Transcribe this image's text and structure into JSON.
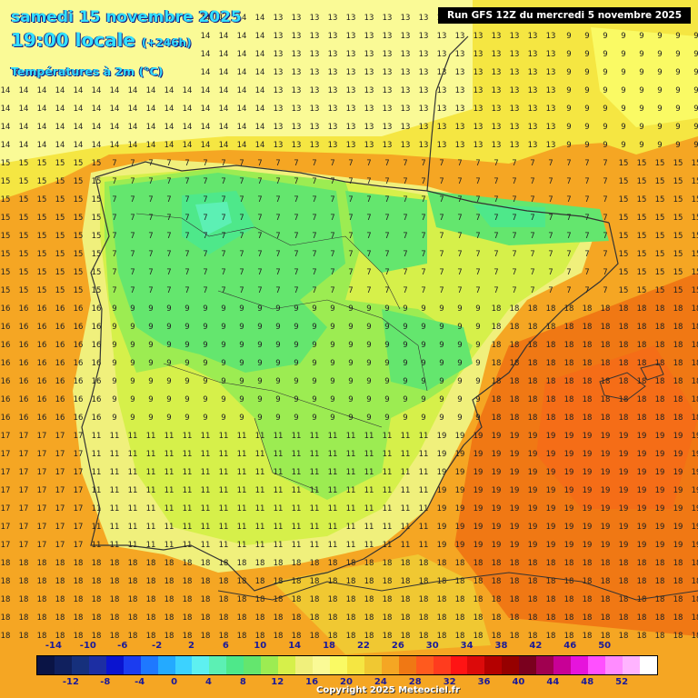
{
  "header": {
    "date": "samedi 15 novembre 2025",
    "time": "19:00 locale",
    "lead": "(+246h)",
    "variable": "Températures à 2m (°C)",
    "run": "Run GFS 12Z du mercredi 5 novembre 2025"
  },
  "legend": {
    "top_labels": [
      "-14",
      "-10",
      "-6",
      "-2",
      "2",
      "6",
      "10",
      "14",
      "18",
      "22",
      "26",
      "30",
      "34",
      "38",
      "42",
      "46",
      "50"
    ],
    "bottom_labels": [
      "-12",
      "-8",
      "-4",
      "0",
      "4",
      "8",
      "12",
      "16",
      "20",
      "24",
      "28",
      "32",
      "36",
      "40",
      "44",
      "48",
      "52"
    ],
    "colors": [
      "#0a1445",
      "#10205e",
      "#16307c",
      "#1c2ea3",
      "#0a14d0",
      "#1b3cf0",
      "#1e78ff",
      "#24aaff",
      "#3cd2ff",
      "#5ef0f0",
      "#5cf0b4",
      "#4ee88a",
      "#64e66e",
      "#9cec52",
      "#d6f04a",
      "#f0f07c",
      "#fafa96",
      "#fafa64",
      "#f5e642",
      "#f0c832",
      "#f5a623",
      "#f07814",
      "#ff5a1e",
      "#ff3c1e",
      "#ff1414",
      "#dc0a0a",
      "#b40000",
      "#960000",
      "#7a001e",
      "#a00050",
      "#c80096",
      "#e614dc",
      "#ff50ff",
      "#ff8cff",
      "#ffb4ff",
      "#ffffff"
    ]
  },
  "copyright": "Copyright 2025 Meteociel.fr"
}
